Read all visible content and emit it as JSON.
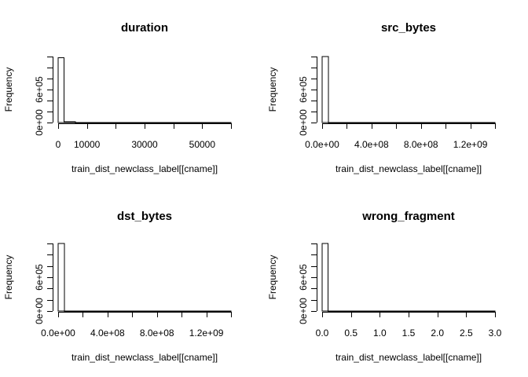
{
  "chart_data": [
    {
      "type": "bar",
      "title": "duration",
      "xlabel": "train_dist_newclass_label[[cname]]",
      "ylabel": "Frequency",
      "xlim": [
        0,
        60000
      ],
      "ylim": [
        0,
        1200000
      ],
      "x_ticks": [
        0,
        10000,
        20000,
        30000,
        40000,
        50000,
        60000
      ],
      "x_tick_labels": [
        "0",
        "10000",
        "",
        "30000",
        "",
        "50000",
        ""
      ],
      "y_ticks": [
        0,
        200000,
        400000,
        600000,
        800000,
        1000000,
        1200000
      ],
      "y_tick_labels": [
        "0e+00",
        "",
        "",
        "6e+05",
        "",
        "",
        ""
      ],
      "bins": [
        {
          "x0": 0,
          "x1": 2000,
          "count": 1180000
        },
        {
          "x0": 2000,
          "x1": 6000,
          "count": 12000
        },
        {
          "x0": 6000,
          "x1": 60000,
          "count": 1500
        }
      ]
    },
    {
      "type": "bar",
      "title": "src_bytes",
      "xlabel": "train_dist_newclass_label[[cname]]",
      "ylabel": "Frequency",
      "xlim": [
        0,
        1400000000
      ],
      "ylim": [
        0,
        1200000
      ],
      "x_ticks": [
        0,
        200000000,
        400000000,
        600000000,
        800000000,
        1000000000,
        1200000000,
        1400000000
      ],
      "x_tick_labels": [
        "0.0e+00",
        "",
        "4.0e+08",
        "",
        "8.0e+08",
        "",
        "1.2e+09",
        ""
      ],
      "y_ticks": [
        0,
        200000,
        400000,
        600000,
        800000,
        1000000,
        1200000
      ],
      "y_tick_labels": [
        "0e+00",
        "",
        "",
        "6e+05",
        "",
        "",
        ""
      ],
      "bins": [
        {
          "x0": 0,
          "x1": 50000000,
          "count": 1200000
        },
        {
          "x0": 50000000,
          "x1": 1400000000,
          "count": 1000
        }
      ]
    },
    {
      "type": "bar",
      "title": "dst_bytes",
      "xlabel": "train_dist_newclass_label[[cname]]",
      "ylabel": "Frequency",
      "xlim": [
        0,
        1400000000
      ],
      "ylim": [
        0,
        1200000
      ],
      "x_ticks": [
        0,
        200000000,
        400000000,
        600000000,
        800000000,
        1000000000,
        1200000000,
        1400000000
      ],
      "x_tick_labels": [
        "0.0e+00",
        "",
        "4.0e+08",
        "",
        "8.0e+08",
        "",
        "1.2e+09",
        ""
      ],
      "y_ticks": [
        0,
        200000,
        400000,
        600000,
        800000,
        1000000,
        1200000
      ],
      "y_tick_labels": [
        "0e+00",
        "",
        "",
        "6e+05",
        "",
        "",
        ""
      ],
      "bins": [
        {
          "x0": 0,
          "x1": 50000000,
          "count": 1200000
        },
        {
          "x0": 50000000,
          "x1": 1400000000,
          "count": 1000
        }
      ]
    },
    {
      "type": "bar",
      "title": "wrong_fragment",
      "xlabel": "train_dist_newclass_label[[cname]]",
      "ylabel": "Frequency",
      "xlim": [
        0,
        3.0
      ],
      "ylim": [
        0,
        1200000
      ],
      "x_ticks": [
        0,
        0.5,
        1.0,
        1.5,
        2.0,
        2.5,
        3.0
      ],
      "x_tick_labels": [
        "0.0",
        "0.5",
        "1.0",
        "1.5",
        "2.0",
        "2.5",
        "3.0"
      ],
      "y_ticks": [
        0,
        200000,
        400000,
        600000,
        800000,
        1000000,
        1200000
      ],
      "y_tick_labels": [
        "0e+00",
        "",
        "",
        "6e+05",
        "",
        "",
        ""
      ],
      "bins": [
        {
          "x0": 0,
          "x1": 0.1,
          "count": 1200000
        },
        {
          "x0": 0.1,
          "x1": 3.0,
          "count": 1000
        }
      ]
    }
  ]
}
